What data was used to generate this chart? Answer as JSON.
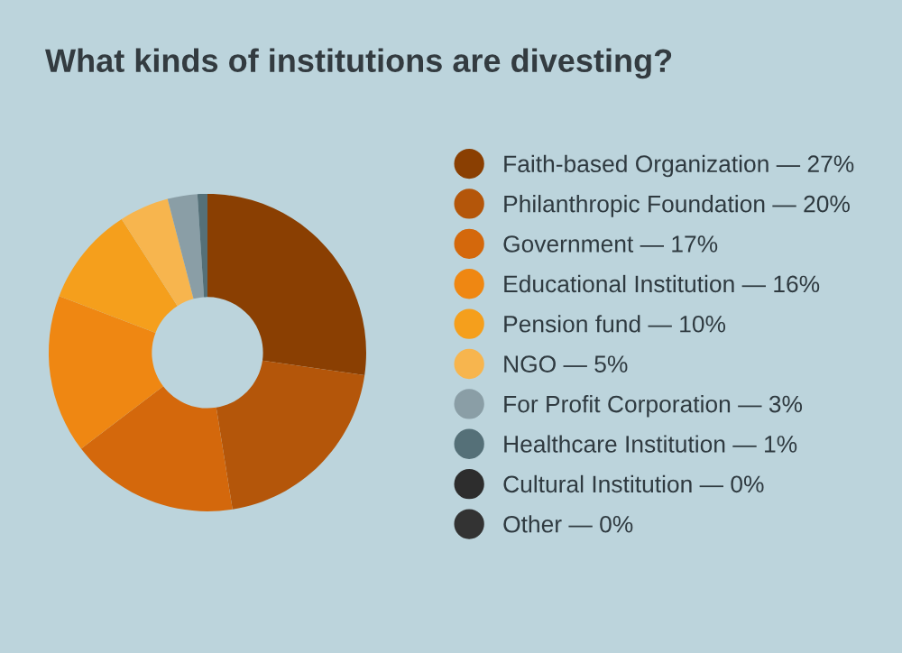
{
  "chart_data": {
    "type": "donut",
    "title": "What kinds of institutions are divesting?",
    "categories": [
      "Faith-based Organization",
      "Philanthropic Foundation",
      "Government",
      "Educational Institution",
      "Pension fund",
      "NGO",
      "For Profit Corporation",
      "Healthcare Institution",
      "Cultural Institution",
      "Other"
    ],
    "values": [
      27,
      20,
      17,
      16,
      10,
      5,
      3,
      1,
      0,
      0
    ],
    "value_labels": [
      "— 27%",
      "— 20%",
      "— 17%",
      "— 16%",
      "— 10%",
      "— 5%",
      "— 3%",
      "— 1%",
      "— 0%",
      "— 0%"
    ],
    "colors": [
      "#8a3f02",
      "#b4560a",
      "#d4680c",
      "#ef8712",
      "#f59f1c",
      "#f7b54e",
      "#8a9ea6",
      "#557078",
      "#2d2d2d",
      "#333333"
    ],
    "legend": "right"
  }
}
